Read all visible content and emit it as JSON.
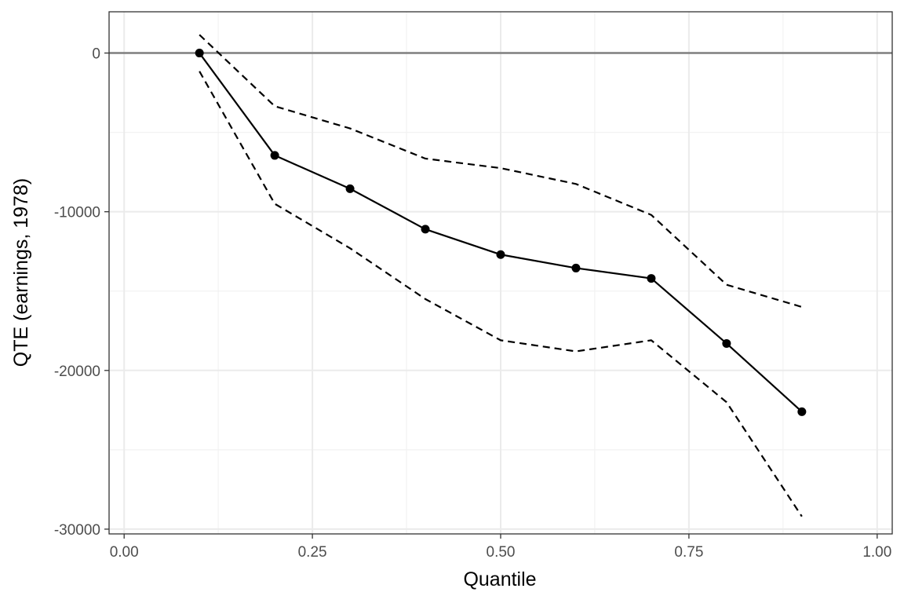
{
  "chart_data": {
    "type": "line",
    "title": "",
    "xlabel": "Quantile",
    "ylabel": "QTE (earnings, 1978)",
    "xlim": [
      -0.02,
      1.02
    ],
    "ylim": [
      -30300,
      2600
    ],
    "x_ticks": [
      0.0,
      0.25,
      0.5,
      0.75,
      1.0
    ],
    "x_tick_labels": [
      "0.00",
      "0.25",
      "0.50",
      "0.75",
      "1.00"
    ],
    "y_ticks": [
      0,
      -10000,
      -20000,
      -30000
    ],
    "y_tick_labels": [
      "0",
      "-10000",
      "-20000",
      "-30000"
    ],
    "reference_line_y": 0,
    "grid": true,
    "legend": "none",
    "series": [
      {
        "style": "solid-with-points",
        "color": "#000000",
        "x": [
          0.1,
          0.2,
          0.3,
          0.4,
          0.5,
          0.6,
          0.7,
          0.8,
          0.9
        ],
        "y": [
          0,
          -6450,
          -8550,
          -11100,
          -12700,
          -13550,
          -14200,
          -18300,
          -22600
        ]
      },
      {
        "style": "dashed",
        "color": "#000000",
        "x": [
          0.1,
          0.2,
          0.3,
          0.4,
          0.5,
          0.6,
          0.7,
          0.8,
          0.9
        ],
        "y": [
          1150,
          -3350,
          -4750,
          -6650,
          -7250,
          -8250,
          -10200,
          -14600,
          -16000
        ]
      },
      {
        "style": "dashed",
        "color": "#000000",
        "x": [
          0.1,
          0.2,
          0.3,
          0.4,
          0.5,
          0.6,
          0.7,
          0.8,
          0.9
        ],
        "y": [
          -1150,
          -9500,
          -12300,
          -15500,
          -18100,
          -18800,
          -18100,
          -22000,
          -29200
        ]
      }
    ]
  }
}
